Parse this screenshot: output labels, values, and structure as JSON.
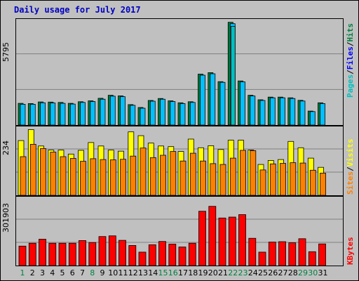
{
  "title": "Daily usage for July 2017",
  "colors": {
    "title": "#0000c0",
    "pages": "#00c0c0",
    "files": "#0000ff",
    "hits": "#008040",
    "sites": "#ff8000",
    "visits": "#ffff00",
    "kbytes": "#ff0000",
    "weekend_day": "#008040",
    "weekday": "#000000",
    "hits_bar": "#00c0ff"
  },
  "chart_data": [
    {
      "type": "bar",
      "panel": "hits-files-pages",
      "ylabel_top": "5795",
      "ymax": 5795,
      "legend": [
        "Pages",
        "/",
        "Files",
        "/",
        "Hits"
      ],
      "categories": [
        "1",
        "2",
        "3",
        "4",
        "5",
        "6",
        "7",
        "8",
        "9",
        "10",
        "11",
        "12",
        "13",
        "14",
        "15",
        "16",
        "17",
        "18",
        "19",
        "20",
        "21",
        "22",
        "23",
        "24",
        "25",
        "26",
        "27",
        "28",
        "29",
        "30",
        "31"
      ],
      "series": [
        {
          "name": "Hits",
          "values": [
            1210,
            1200,
            1290,
            1280,
            1260,
            1210,
            1300,
            1350,
            1490,
            1660,
            1630,
            1140,
            980,
            1370,
            1480,
            1350,
            1240,
            1300,
            2840,
            2920,
            2420,
            5730,
            2460,
            1660,
            1410,
            1560,
            1560,
            1520,
            1380,
            780,
            1240
          ]
        },
        {
          "name": "Files",
          "values": [
            1160,
            1160,
            1240,
            1230,
            1210,
            1170,
            1260,
            1310,
            1440,
            1610,
            1580,
            1100,
            940,
            1330,
            1440,
            1310,
            1200,
            1260,
            2780,
            2860,
            2380,
            5650,
            2410,
            1620,
            1370,
            1520,
            1520,
            1480,
            1340,
            750,
            1200
          ]
        },
        {
          "name": "Pages",
          "values": [
            60,
            60,
            60,
            60,
            60,
            60,
            60,
            60,
            60,
            60,
            60,
            60,
            60,
            60,
            60,
            60,
            60,
            60,
            120,
            120,
            100,
            5500,
            110,
            60,
            60,
            60,
            60,
            60,
            60,
            40,
            60
          ]
        }
      ]
    },
    {
      "type": "bar",
      "panel": "visits-sites",
      "ylabel_top": "234",
      "ymax": 234,
      "legend": [
        "Sites",
        "/",
        "Visits"
      ],
      "categories": [
        "1",
        "2",
        "3",
        "4",
        "5",
        "6",
        "7",
        "8",
        "9",
        "10",
        "11",
        "12",
        "13",
        "14",
        "15",
        "16",
        "17",
        "18",
        "19",
        "20",
        "21",
        "22",
        "23",
        "24",
        "25",
        "26",
        "27",
        "28",
        "29",
        "30",
        "31"
      ],
      "series": [
        {
          "name": "Visits",
          "values": [
            190,
            228,
            171,
            157,
            157,
            143,
            156,
            183,
            171,
            157,
            153,
            220,
            207,
            181,
            171,
            169,
            152,
            195,
            165,
            172,
            159,
            191,
            191,
            157,
            107,
            121,
            124,
            187,
            165,
            129,
            97
          ]
        },
        {
          "name": "Sites",
          "values": [
            134,
            177,
            162,
            150,
            134,
            128,
            118,
            127,
            124,
            123,
            125,
            136,
            164,
            131,
            139,
            152,
            119,
            146,
            119,
            110,
            107,
            129,
            156,
            155,
            88,
            109,
            111,
            113,
            112,
            87,
            77
          ]
        }
      ]
    },
    {
      "type": "bar",
      "panel": "kbytes",
      "ylabel_top": "301903",
      "ymax": 301903,
      "legend": [
        "KBytes"
      ],
      "categories": [
        "1",
        "2",
        "3",
        "4",
        "5",
        "6",
        "7",
        "8",
        "9",
        "10",
        "11",
        "12",
        "13",
        "14",
        "15",
        "16",
        "17",
        "18",
        "19",
        "20",
        "21",
        "22",
        "23",
        "24",
        "25",
        "26",
        "27",
        "28",
        "29",
        "30",
        "31"
      ],
      "series": [
        {
          "name": "KBytes",
          "values": [
            87000,
            100000,
            118000,
            100000,
            100000,
            100000,
            112000,
            103000,
            130000,
            133000,
            113000,
            90000,
            60000,
            93000,
            108000,
            96000,
            83000,
            100000,
            243000,
            265000,
            213000,
            217000,
            228000,
            122000,
            60000,
            105000,
            107000,
            102000,
            120000,
            62000,
            97000
          ]
        }
      ]
    }
  ],
  "x_labels": [
    "1",
    "2",
    "3",
    "4",
    "5",
    "6",
    "7",
    "8",
    "9",
    "10",
    "11",
    "12",
    "13",
    "14",
    "15",
    "16",
    "17",
    "18",
    "19",
    "20",
    "21",
    "22",
    "23",
    "24",
    "25",
    "26",
    "27",
    "28",
    "29",
    "30",
    "31"
  ],
  "weekend_days": [
    1,
    8,
    15,
    16,
    22,
    23,
    29,
    30
  ]
}
